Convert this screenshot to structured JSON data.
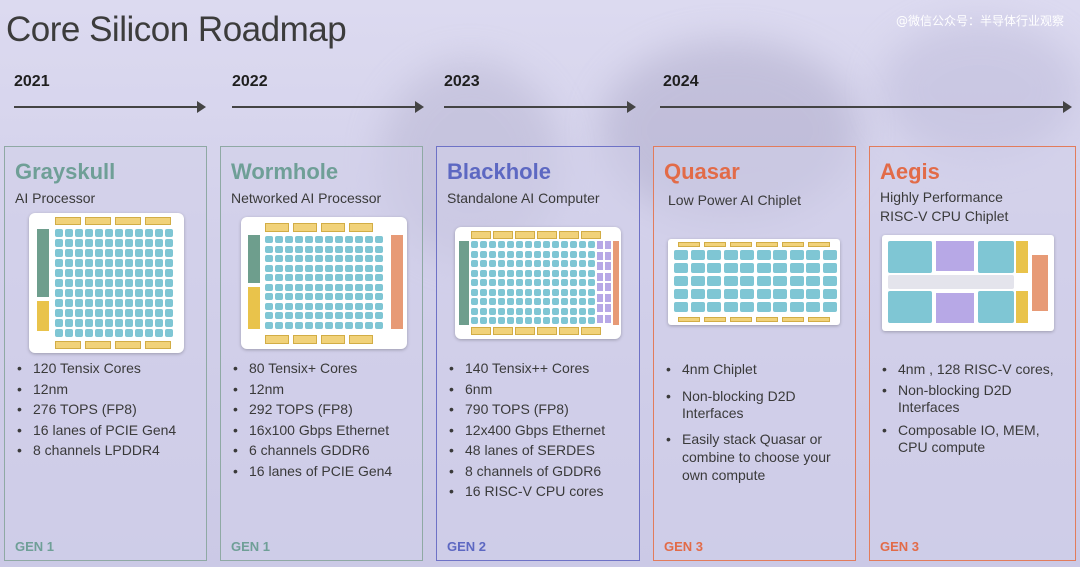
{
  "title": "Core Silicon Roadmap",
  "watermark": "@微信公众号：半导体行业观察",
  "timeline": [
    {
      "year": "2021"
    },
    {
      "year": "2022"
    },
    {
      "year": "2023"
    },
    {
      "year": "2024"
    }
  ],
  "colors": {
    "teal": "#6f9f97",
    "blue": "#5d68c2",
    "orange": "#e26b48"
  },
  "cards": [
    {
      "name": "Grayskull",
      "subtitle_lines": [
        "AI Processor"
      ],
      "bullets": [
        "120 Tensix Cores",
        "12nm",
        "276 TOPS (FP8)",
        "16 lanes of PCIE Gen4",
        "8 channels LPDDR4"
      ],
      "gen": "GEN 1"
    },
    {
      "name": "Wormhole",
      "subtitle_lines": [
        "Networked AI Processor"
      ],
      "bullets": [
        "80 Tensix+ Cores",
        "12nm",
        "292 TOPS (FP8)",
        "16x100 Gbps Ethernet",
        "6 channels GDDR6",
        "16 lanes of PCIE Gen4"
      ],
      "gen": "GEN 1"
    },
    {
      "name": "Blackhole",
      "subtitle_lines": [
        "Standalone AI Computer"
      ],
      "bullets": [
        "140 Tensix++ Cores",
        "6nm",
        "790 TOPS (FP8)",
        "12x400 Gbps Ethernet",
        "48 lanes of SERDES",
        "8 channels of GDDR6",
        "16 RISC-V CPU cores"
      ],
      "gen": "GEN 2"
    },
    {
      "name": "Quasar",
      "subtitle_lines": [
        "Low Power AI Chiplet"
      ],
      "bullets": [
        "4nm Chiplet",
        "Non-blocking D2D Interfaces",
        "Easily stack Quasar or combine to choose your own compute"
      ],
      "gen": "GEN 3"
    },
    {
      "name": "Aegis",
      "subtitle_lines": [
        "Highly Performance",
        "RISC-V CPU Chiplet"
      ],
      "bullets": [
        "4nm , 128 RISC-V cores,",
        "Non-blocking D2D Interfaces",
        "Composable IO, MEM, CPU compute"
      ],
      "gen": "GEN 3"
    }
  ]
}
